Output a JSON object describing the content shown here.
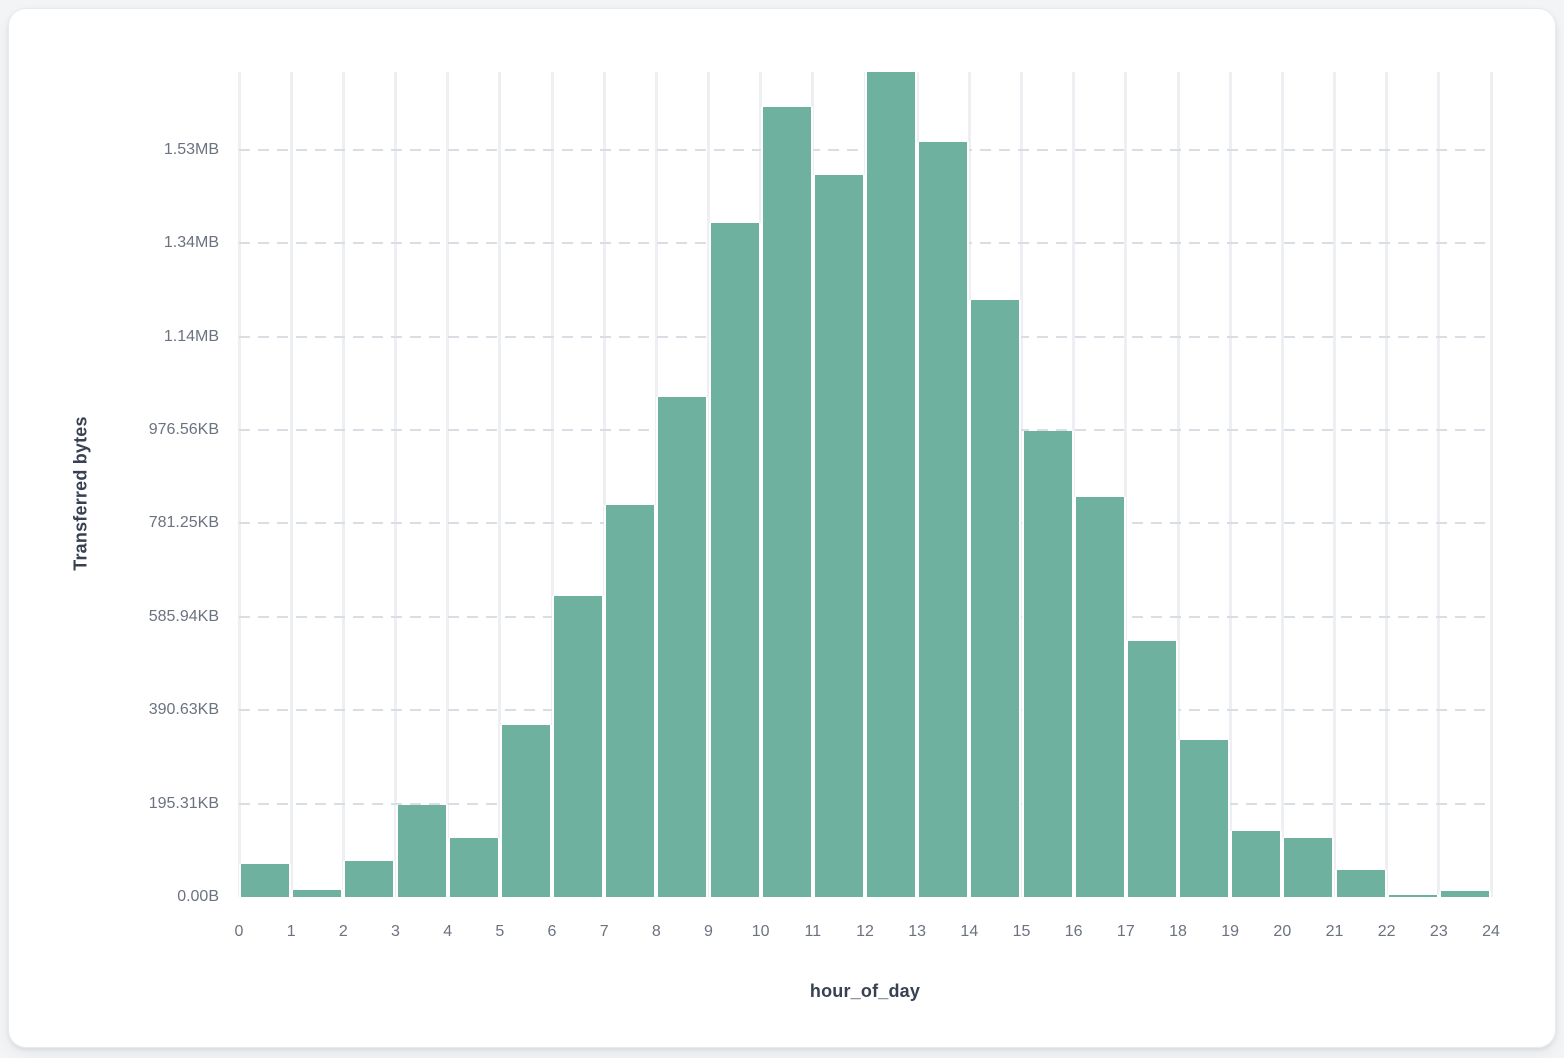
{
  "card": {
    "background": "#ffffff"
  },
  "chart_data": {
    "type": "bar",
    "title": "",
    "xlabel": "hour_of_day",
    "ylabel": "Transferred bytes",
    "categories": [
      0,
      1,
      2,
      3,
      4,
      5,
      6,
      7,
      8,
      9,
      10,
      11,
      12,
      13,
      14,
      15,
      16,
      17,
      18,
      19,
      20,
      21,
      22,
      23
    ],
    "values_bytes": [
      71400,
      14300,
      77800,
      196500,
      126400,
      368500,
      643400,
      840100,
      1069900,
      1443000,
      1691300,
      1545000,
      1766400,
      1616300,
      1278600,
      997500,
      857500,
      548000,
      335500,
      141400,
      127100,
      57300,
      4300,
      12900
    ],
    "x_tick_labels": [
      "0",
      "1",
      "2",
      "3",
      "4",
      "5",
      "6",
      "7",
      "8",
      "9",
      "10",
      "11",
      "12",
      "13",
      "14",
      "15",
      "16",
      "17",
      "18",
      "19",
      "20",
      "21",
      "22",
      "23",
      "24"
    ],
    "y_tick_labels": [
      "0.00B",
      "195.31KB",
      "390.63KB",
      "585.94KB",
      "781.25KB",
      "976.56KB",
      "1.14MB",
      "1.34MB",
      "1.53MB"
    ],
    "y_tick_bytes": [
      0,
      200000,
      400000,
      600000,
      800000,
      1000000,
      1200000,
      1400000,
      1600000
    ],
    "ylim_bytes": [
      0,
      1766400
    ],
    "bar_color": "#6eb19e",
    "grid": "both",
    "legend_position": "none"
  }
}
